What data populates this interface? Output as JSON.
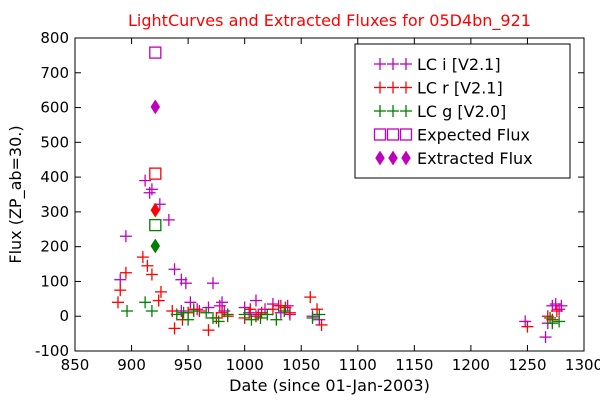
{
  "chart_data": {
    "type": "scatter",
    "title": "LightCurves and Extracted Fluxes for 05D4bn_921",
    "title_color": "#ff0000",
    "xlabel": "Date (since 01-Jan-2003)",
    "ylabel": "Flux (ZP_ab=30.)",
    "xlim": [
      850,
      1300
    ],
    "ylim": [
      -100,
      800
    ],
    "xticks": [
      850,
      900,
      950,
      1000,
      1050,
      1100,
      1150,
      1200,
      1250,
      1300
    ],
    "yticks": [
      -100,
      0,
      100,
      200,
      300,
      400,
      500,
      600,
      700,
      800
    ],
    "grid": false,
    "legend_position": "top-right",
    "series": [
      {
        "name": "LC i [V2.1]",
        "marker": "plus",
        "color": "#bf00bf",
        "points": [
          [
            890,
            105
          ],
          [
            895,
            230
          ],
          [
            912,
            390
          ],
          [
            916,
            355
          ],
          [
            918,
            365
          ],
          [
            925,
            322
          ],
          [
            933,
            277
          ],
          [
            938,
            135
          ],
          [
            944,
            105
          ],
          [
            948,
            95
          ],
          [
            952,
            40
          ],
          [
            944,
            15
          ],
          [
            958,
            20
          ],
          [
            968,
            25
          ],
          [
            972,
            95
          ],
          [
            978,
            30
          ],
          [
            980,
            40
          ],
          [
            982,
            15
          ],
          [
            1000,
            25
          ],
          [
            1004,
            10
          ],
          [
            1010,
            45
          ],
          [
            1012,
            5
          ],
          [
            1018,
            20
          ],
          [
            1025,
            35
          ],
          [
            1030,
            30
          ],
          [
            1032,
            10
          ],
          [
            1038,
            30
          ],
          [
            1040,
            5
          ],
          [
            1060,
            0
          ],
          [
            1066,
            -10
          ],
          [
            1248,
            -15
          ],
          [
            1266,
            -60
          ],
          [
            1268,
            -20
          ],
          [
            1272,
            30
          ],
          [
            1275,
            35
          ],
          [
            1278,
            20
          ],
          [
            1280,
            30
          ]
        ]
      },
      {
        "name": "LC r [V2.1]",
        "marker": "plus",
        "color": "#ff0000",
        "points": [
          [
            888,
            40
          ],
          [
            890,
            75
          ],
          [
            895,
            125
          ],
          [
            910,
            170
          ],
          [
            914,
            145
          ],
          [
            918,
            120
          ],
          [
            924,
            45
          ],
          [
            926,
            70
          ],
          [
            936,
            15
          ],
          [
            938,
            -35
          ],
          [
            945,
            -10
          ],
          [
            950,
            10
          ],
          [
            955,
            20
          ],
          [
            960,
            15
          ],
          [
            968,
            -40
          ],
          [
            975,
            -5
          ],
          [
            980,
            10
          ],
          [
            985,
            0
          ],
          [
            1000,
            -5
          ],
          [
            1005,
            20
          ],
          [
            1010,
            0
          ],
          [
            1015,
            10
          ],
          [
            1025,
            20
          ],
          [
            1032,
            30
          ],
          [
            1036,
            25
          ],
          [
            1040,
            10
          ],
          [
            1058,
            55
          ],
          [
            1064,
            20
          ],
          [
            1068,
            -25
          ],
          [
            1250,
            -30
          ],
          [
            1268,
            0
          ],
          [
            1272,
            -10
          ],
          [
            1276,
            15
          ]
        ]
      },
      {
        "name": "LC g [V2.0]",
        "marker": "plus",
        "color": "#008000",
        "points": [
          [
            896,
            15
          ],
          [
            912,
            40
          ],
          [
            918,
            15
          ],
          [
            940,
            5
          ],
          [
            946,
            10
          ],
          [
            950,
            -10
          ],
          [
            955,
            15
          ],
          [
            966,
            10
          ],
          [
            972,
            -5
          ],
          [
            977,
            -15
          ],
          [
            985,
            5
          ],
          [
            1000,
            5
          ],
          [
            1006,
            -10
          ],
          [
            1014,
            -5
          ],
          [
            1020,
            5
          ],
          [
            1028,
            -10
          ],
          [
            1035,
            15
          ],
          [
            1060,
            -5
          ],
          [
            1066,
            5
          ],
          [
            1270,
            -5
          ],
          [
            1272,
            -20
          ],
          [
            1278,
            -15
          ]
        ]
      },
      {
        "name": "Expected Flux",
        "marker": "square-open",
        "points": [
          {
            "x": 921,
            "y": 758,
            "color": "#bf00bf"
          },
          {
            "x": 921,
            "y": 410,
            "color": "#ff0000"
          },
          {
            "x": 921,
            "y": 262,
            "color": "#008000"
          }
        ]
      },
      {
        "name": "Extracted Flux",
        "marker": "diamond",
        "points": [
          {
            "x": 921,
            "y": 602,
            "color": "#bf00bf"
          },
          {
            "x": 921,
            "y": 305,
            "color": "#ff0000"
          },
          {
            "x": 921,
            "y": 202,
            "color": "#008000"
          }
        ]
      }
    ],
    "legend": [
      {
        "label": "LC i [V2.1]",
        "marker": "plus",
        "color": "#bf00bf"
      },
      {
        "label": "LC r [V2.1]",
        "marker": "plus",
        "color": "#ff0000"
      },
      {
        "label": "LC g [V2.0]",
        "marker": "plus",
        "color": "#008000"
      },
      {
        "label": "Expected Flux",
        "marker": "square-open",
        "color": "#bf00bf"
      },
      {
        "label": "Extracted Flux",
        "marker": "diamond",
        "color": "#bf00bf"
      }
    ]
  }
}
